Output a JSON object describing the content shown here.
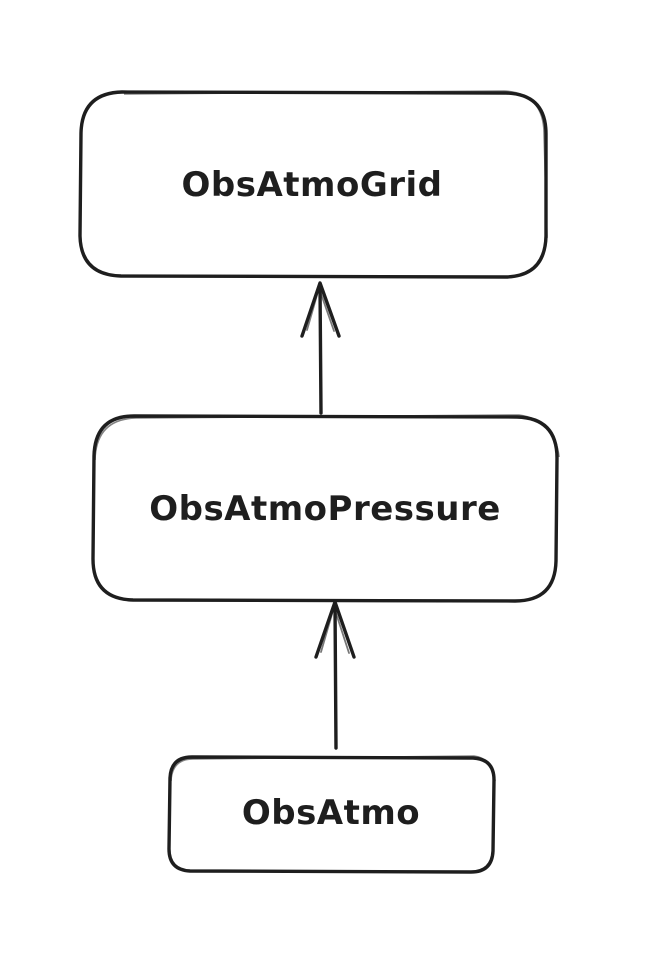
{
  "diagram": {
    "nodes": [
      {
        "id": "grid",
        "label": "ObsAtmoGrid"
      },
      {
        "id": "pressure",
        "label": "ObsAtmoPressure"
      },
      {
        "id": "atmo",
        "label": "ObsAtmo"
      }
    ],
    "edges": [
      {
        "from": "pressure",
        "to": "grid"
      },
      {
        "from": "atmo",
        "to": "pressure"
      }
    ],
    "colors": {
      "stroke": "#1e1e1e",
      "background": "#ffffff"
    }
  }
}
